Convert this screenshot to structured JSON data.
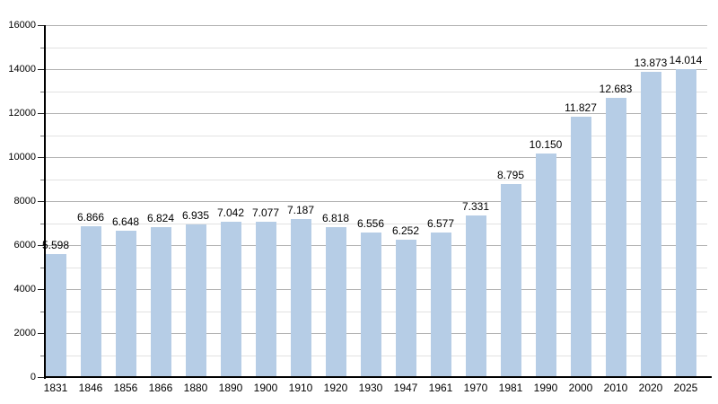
{
  "chart_data": {
    "type": "bar",
    "title": "",
    "categories": [
      "1831",
      "1846",
      "1856",
      "1866",
      "1880",
      "1890",
      "1900",
      "1910",
      "1920",
      "1930",
      "1947",
      "1961",
      "1970",
      "1981",
      "1990",
      "2000",
      "2010",
      "2020",
      "2025"
    ],
    "values": [
      5598,
      6866,
      6648,
      6824,
      6935,
      7042,
      7077,
      7187,
      6818,
      6556,
      6252,
      6577,
      7331,
      8795,
      10150,
      11827,
      12683,
      13873,
      14014
    ],
    "value_labels": [
      "5.598",
      "6.866",
      "6.648",
      "6.824",
      "6.935",
      "7.042",
      "7.077",
      "7.187",
      "6.818",
      "6.556",
      "6.252",
      "6.577",
      "7.331",
      "8.795",
      "10.150",
      "11.827",
      "12.683",
      "13.873",
      "14.014"
    ],
    "xlabel": "",
    "ylabel": "",
    "ylim": [
      0,
      16000
    ],
    "y_major_step": 2000,
    "y_minor_step": 1000,
    "y_tick_labels": [
      "0",
      "2000",
      "4000",
      "6000",
      "8000",
      "10000",
      "12000",
      "14000",
      "16000"
    ],
    "grid": "on",
    "legend": "none",
    "colors": {
      "bar_fill": "#b6cde6",
      "major_gridline": "#b2b2b2",
      "minor_gridline": "#e2e2e2",
      "major_tick": "#222222",
      "minor_tick": "#777777",
      "axis": "#000000",
      "text": "#000000",
      "background": "#ffffff"
    }
  }
}
